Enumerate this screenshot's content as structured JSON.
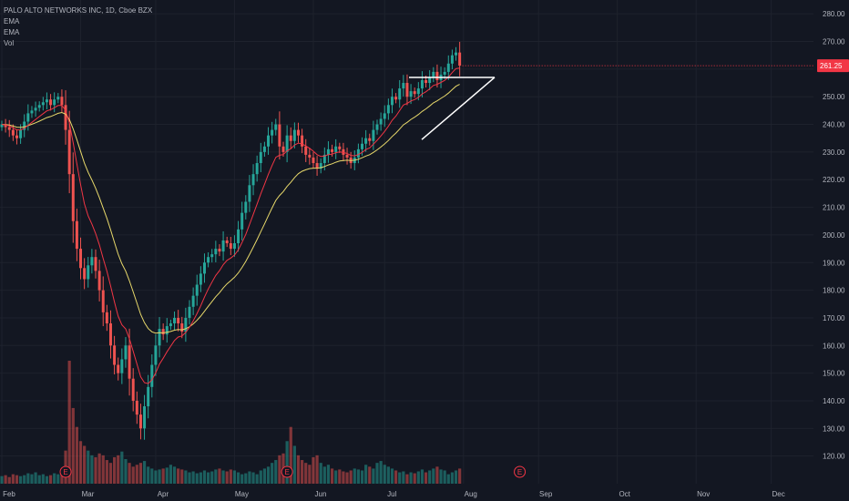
{
  "legend": {
    "title": "PALO ALTO NETWORKS INC, 1D, Cboe BZX",
    "ema1": "EMA",
    "ema2": "EMA",
    "vol": "Vol"
  },
  "colors": {
    "background": "#131722",
    "grid": "#1e222d",
    "up": "#26a69a",
    "down": "#ef5350",
    "ema_fast": "#f23645",
    "ema_slow": "#e8d96b",
    "trendline": "#ffffff",
    "price_tag": "#f23645",
    "axis_text": "#b2b5be"
  },
  "chart_data": {
    "type": "candlestick",
    "y_axis": {
      "min": 110,
      "max": 285,
      "ticks": [
        120,
        130,
        140,
        150,
        160,
        170,
        180,
        190,
        200,
        210,
        220,
        230,
        240,
        250,
        260,
        270,
        280
      ],
      "tick_labels": [
        "120.00",
        "130.00",
        "140.00",
        "150.00",
        "160.00",
        "170.00",
        "180.00",
        "190.00",
        "200.00",
        "210.00",
        "220.00",
        "230.00",
        "240.00",
        "250.00",
        "260.00",
        "270.00",
        "280.00"
      ]
    },
    "x_axis": {
      "month_labels": [
        "Feb",
        "Mar",
        "Apr",
        "May",
        "Jun",
        "Jul",
        "Aug",
        "Sep",
        "Oct",
        "Nov",
        "Dec"
      ],
      "month_index": [
        0,
        21,
        41,
        62,
        83,
        102,
        123,
        143,
        164,
        185,
        205
      ]
    },
    "last_price": "261.25",
    "last_price_value": 261.25,
    "earnings_markers": [
      {
        "index": 17,
        "label": "E"
      },
      {
        "index": 76,
        "label": "E"
      },
      {
        "index": 138,
        "label": "E"
      }
    ],
    "closes": [
      240,
      239,
      238,
      236,
      235,
      238,
      241,
      244,
      245,
      246,
      247,
      248,
      249,
      247,
      249,
      250,
      247,
      238,
      222,
      205,
      195,
      188,
      184,
      189,
      192,
      187,
      180,
      172,
      168,
      160,
      153,
      150,
      155,
      160,
      148,
      140,
      135,
      130,
      138,
      145,
      153,
      160,
      166,
      164,
      167,
      168,
      170,
      168,
      165,
      170,
      174,
      178,
      182,
      186,
      190,
      192,
      193,
      195,
      194,
      198,
      197,
      195,
      197,
      202,
      208,
      212,
      218,
      222,
      226,
      230,
      232,
      236,
      238,
      240,
      232,
      230,
      236,
      234,
      238,
      236,
      232,
      229,
      228,
      226,
      224,
      226,
      229,
      231,
      230,
      232,
      231,
      229,
      228,
      226,
      228,
      231,
      233,
      235,
      234,
      238,
      240,
      242,
      244,
      247,
      250,
      249,
      253,
      255,
      250,
      252,
      251,
      253,
      256,
      255,
      257,
      259,
      256,
      258,
      259,
      262,
      265,
      266,
      261.25
    ],
    "volumes": [
      8,
      9,
      7,
      10,
      9,
      8,
      9,
      11,
      10,
      12,
      9,
      10,
      8,
      9,
      11,
      10,
      14,
      35,
      130,
      80,
      60,
      45,
      40,
      35,
      30,
      28,
      32,
      30,
      25,
      22,
      28,
      30,
      34,
      26,
      22,
      18,
      20,
      22,
      24,
      18,
      16,
      14,
      15,
      16,
      17,
      20,
      18,
      16,
      15,
      14,
      12,
      13,
      11,
      12,
      14,
      12,
      13,
      15,
      16,
      14,
      13,
      15,
      14,
      12,
      10,
      11,
      13,
      12,
      10,
      14,
      16,
      18,
      22,
      25,
      30,
      32,
      45,
      60,
      40,
      30,
      25,
      22,
      20,
      28,
      30,
      22,
      18,
      20,
      16,
      14,
      15,
      13,
      12,
      14,
      16,
      15,
      14,
      20,
      18,
      16,
      22,
      24,
      20,
      18,
      16,
      14,
      12,
      13,
      10,
      12,
      11,
      13,
      15,
      12,
      14,
      16,
      18,
      15,
      14,
      10,
      12,
      14,
      16
    ]
  }
}
